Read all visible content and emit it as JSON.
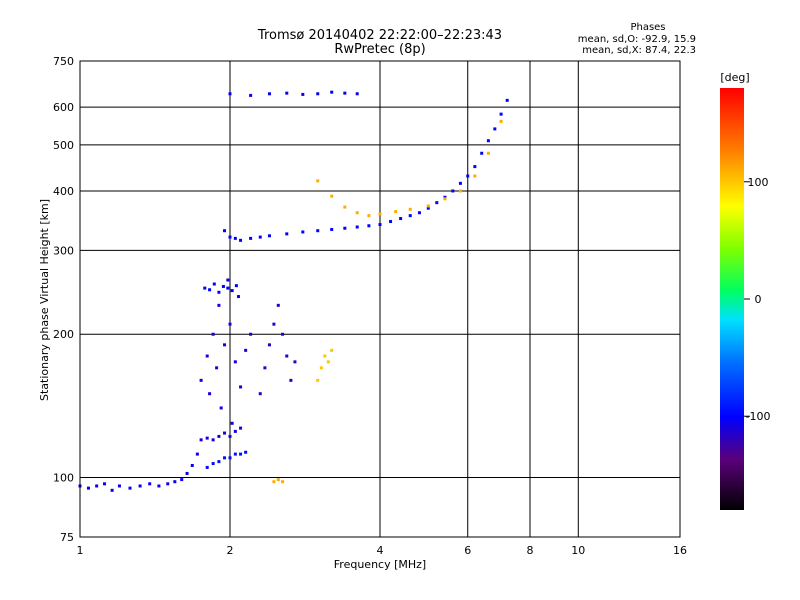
{
  "chart_data": {
    "type": "scatter",
    "title": "Tromsø 20140402 22:22:00–22:23:43",
    "subtitle": "RwPretec (8p)",
    "xlabel": "Frequency [MHz]",
    "ylabel": "Stationary phase Virtual Height [km]",
    "x_scale": "log",
    "y_scale": "log",
    "xlim": [
      1,
      16
    ],
    "ylim": [
      75,
      750
    ],
    "x_ticks": [
      1,
      2,
      4,
      6,
      8,
      10,
      16
    ],
    "y_ticks": [
      75,
      100,
      200,
      300,
      400,
      500,
      600,
      750
    ],
    "grid": true,
    "phase_stats": {
      "title": "Phases",
      "line_o": "mean, sd,O: -92.9, 15.9",
      "line_x": "mean, sd,X:  87.4, 22.3"
    },
    "colorbar": {
      "label": "[deg]",
      "ticks": [
        100,
        0,
        -100
      ],
      "range": [
        -180,
        180
      ]
    },
    "series": [
      {
        "x": [
          1.0,
          1.04,
          1.08,
          1.12,
          1.16,
          1.2,
          1.26,
          1.32,
          1.38,
          1.44,
          1.5,
          1.55,
          1.6,
          1.64,
          1.68,
          1.72
        ],
        "y": [
          96,
          95,
          96,
          97,
          94,
          96,
          95,
          96,
          97,
          96,
          97,
          98,
          99,
          102,
          106,
          112
        ],
        "phase": -105
      },
      {
        "x": [
          1.75,
          1.8,
          1.85,
          1.9,
          1.95,
          2.0,
          2.05,
          2.1
        ],
        "y": [
          120,
          121,
          120,
          122,
          124,
          122,
          125,
          127
        ],
        "phase": -110
      },
      {
        "x": [
          1.8,
          1.85,
          1.9,
          1.95,
          2.0,
          2.05,
          2.1,
          2.15
        ],
        "y": [
          105,
          107,
          108,
          110,
          110,
          112,
          112,
          113
        ],
        "phase": -95
      },
      {
        "x": [
          1.75,
          1.8,
          1.82,
          1.85,
          1.88,
          1.9,
          1.92,
          1.95,
          1.98,
          2.0,
          2.02,
          2.05,
          2.08,
          2.1,
          2.15,
          2.2
        ],
        "y": [
          160,
          180,
          150,
          200,
          170,
          230,
          140,
          190,
          260,
          210,
          130,
          175,
          240,
          155,
          185,
          200
        ],
        "phase": -110
      },
      {
        "x": [
          1.78,
          1.82,
          1.86,
          1.9,
          1.94,
          1.98,
          2.02,
          2.06
        ],
        "y": [
          250,
          248,
          255,
          245,
          252,
          250,
          247,
          253
        ],
        "phase": -100
      },
      {
        "x": [
          2.3,
          2.35,
          2.4,
          2.45,
          2.5,
          2.55,
          2.6,
          2.65,
          2.7
        ],
        "y": [
          150,
          170,
          190,
          210,
          230,
          200,
          180,
          160,
          175
        ],
        "phase": -115
      },
      {
        "x": [
          2.45,
          2.5,
          2.55
        ],
        "y": [
          98,
          99,
          98
        ],
        "phase": 110
      },
      {
        "x": [
          1.95,
          2.0,
          2.05,
          2.1,
          2.2,
          2.3,
          2.4,
          2.6,
          2.8,
          3.0,
          3.2,
          3.4,
          3.6,
          3.8,
          4.0,
          4.2,
          4.4,
          4.6,
          4.8,
          5.0,
          5.2,
          5.4,
          5.6,
          5.8,
          6.0,
          6.2,
          6.4,
          6.6,
          6.8,
          7.0,
          7.2
        ],
        "y": [
          330,
          320,
          318,
          315,
          318,
          320,
          322,
          325,
          328,
          330,
          332,
          334,
          336,
          338,
          340,
          345,
          350,
          355,
          360,
          368,
          378,
          388,
          400,
          415,
          430,
          450,
          480,
          510,
          540,
          580,
          620
        ],
        "phase": -100
      },
      {
        "x": [
          3.0,
          3.2,
          3.4,
          3.6,
          3.8,
          4.0,
          4.3,
          4.6,
          5.0,
          5.4,
          5.8,
          6.2,
          6.6,
          7.0
        ],
        "y": [
          420,
          390,
          370,
          360,
          355,
          358,
          362,
          366,
          372,
          385,
          400,
          430,
          480,
          560
        ],
        "phase": 110
      },
      {
        "x": [
          3.0,
          3.05,
          3.1,
          3.15,
          3.2
        ],
        "y": [
          160,
          170,
          180,
          175,
          185
        ],
        "phase": 100
      },
      {
        "x": [
          2.0,
          2.2,
          2.4,
          2.6,
          2.8,
          3.0,
          3.2,
          3.4,
          3.6
        ],
        "y": [
          640,
          635,
          640,
          642,
          638,
          640,
          645,
          642,
          640
        ],
        "phase": -105
      }
    ]
  }
}
